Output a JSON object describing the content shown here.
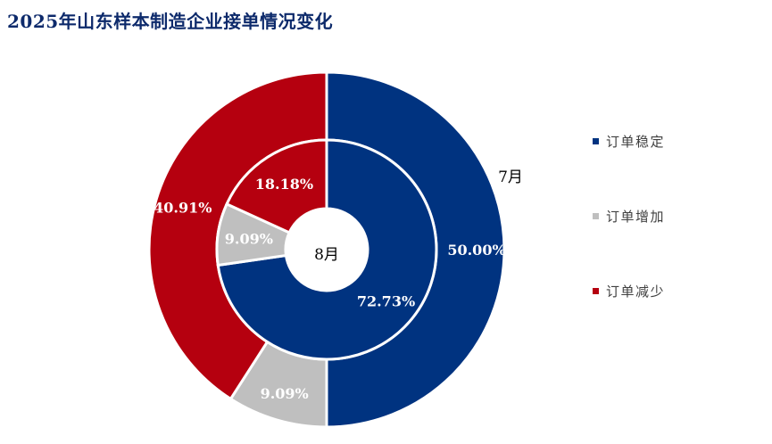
{
  "title": "2025年山东样本制造企业接单情况变化",
  "colors": {
    "订单稳定": "#003380",
    "订单增加": "#bfbfbf",
    "订单减少": "#b5000f"
  },
  "legend": [
    {
      "label": "订单稳定",
      "color": "#003380"
    },
    {
      "label": "订单增加",
      "color": "#bfbfbf"
    },
    {
      "label": "订单减少",
      "color": "#b5000f"
    }
  ],
  "chart_data": {
    "type": "pie",
    "variant": "nested donut",
    "title": "2025年山东样本制造企业接单情况变化",
    "categories": [
      "订单稳定",
      "订单增加",
      "订单减少"
    ],
    "series": [
      {
        "name": "7月",
        "ring": "outer",
        "values": [
          50.0,
          9.09,
          40.91
        ],
        "labels": [
          "50.00%",
          "9.09%",
          "40.91%"
        ]
      },
      {
        "name": "8月",
        "ring": "inner",
        "values": [
          72.73,
          9.09,
          18.18
        ],
        "labels": [
          "72.73%",
          "9.09%",
          "18.18%"
        ]
      }
    ],
    "legend_position": "right"
  }
}
